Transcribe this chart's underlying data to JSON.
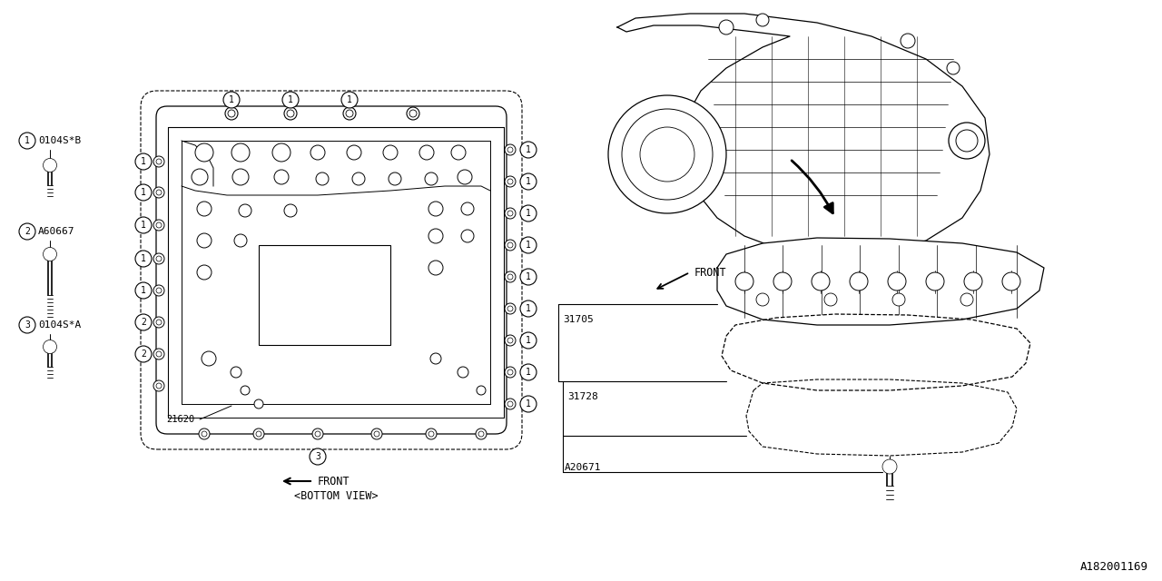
{
  "bg_color": "#ffffff",
  "line_color": "#000000",
  "watermark": "A182001169",
  "label_part1": "0104S*B",
  "label_part2": "A60667",
  "label_part3": "0104S*A",
  "label_21620": "21620",
  "label_31705": "31705",
  "label_31728": "31728",
  "label_A20671": "A20671",
  "label_front": "FRONT",
  "label_bottom_view": "<BOTTOM VIEW>",
  "font_mono": "monospace"
}
